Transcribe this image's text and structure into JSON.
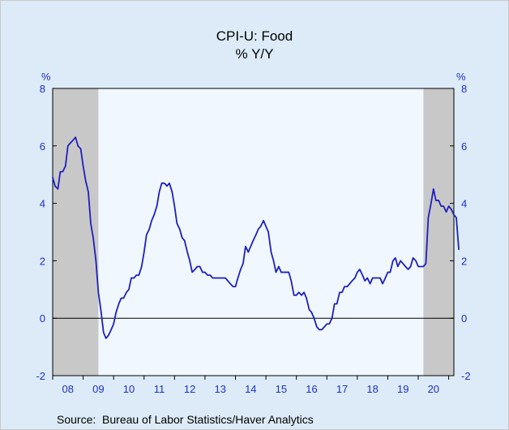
{
  "chart_data": {
    "type": "line",
    "title": "CPI-U: Food",
    "subtitle": "% Y/Y",
    "left_unit": "%",
    "right_unit": "%",
    "source": "Source:  Bureau of Labor Statistics/Haver Analytics",
    "ylim": [
      -2,
      8
    ],
    "y_ticks": [
      -2,
      0,
      2,
      4,
      6,
      8
    ],
    "x_range": [
      2008.0,
      2021.17
    ],
    "x_tick_labels": [
      "08",
      "09",
      "10",
      "11",
      "12",
      "13",
      "14",
      "15",
      "16",
      "17",
      "18",
      "19",
      "20"
    ],
    "zero_line": true,
    "recession_shading": [
      {
        "start": 2008.0,
        "end": 2009.5
      },
      {
        "start": 2020.17,
        "end": 2021.17
      }
    ],
    "colors": {
      "line": "#1f1fbf",
      "axis_text": "#1f2dcc",
      "plot_background": "#f0f7ff",
      "shading": "#c8c8c8",
      "outer_background": "#dcebf7"
    },
    "series": [
      {
        "values": [
          [
            2008.0,
            4.9
          ],
          [
            2008.08,
            4.6
          ],
          [
            2008.17,
            4.5
          ],
          [
            2008.25,
            5.1
          ],
          [
            2008.33,
            5.1
          ],
          [
            2008.42,
            5.3
          ],
          [
            2008.5,
            6.0
          ],
          [
            2008.58,
            6.1
          ],
          [
            2008.67,
            6.2
          ],
          [
            2008.75,
            6.3
          ],
          [
            2008.83,
            6.0
          ],
          [
            2008.92,
            5.9
          ],
          [
            2009.0,
            5.3
          ],
          [
            2009.08,
            4.8
          ],
          [
            2009.17,
            4.4
          ],
          [
            2009.25,
            3.3
          ],
          [
            2009.33,
            2.8
          ],
          [
            2009.42,
            2.0
          ],
          [
            2009.5,
            0.9
          ],
          [
            2009.58,
            0.3
          ],
          [
            2009.67,
            -0.5
          ],
          [
            2009.75,
            -0.7
          ],
          [
            2009.83,
            -0.6
          ],
          [
            2009.92,
            -0.4
          ],
          [
            2010.0,
            -0.2
          ],
          [
            2010.08,
            0.2
          ],
          [
            2010.17,
            0.5
          ],
          [
            2010.25,
            0.7
          ],
          [
            2010.33,
            0.7
          ],
          [
            2010.42,
            0.9
          ],
          [
            2010.5,
            1.0
          ],
          [
            2010.58,
            1.4
          ],
          [
            2010.67,
            1.4
          ],
          [
            2010.75,
            1.5
          ],
          [
            2010.83,
            1.5
          ],
          [
            2010.92,
            1.8
          ],
          [
            2011.0,
            2.3
          ],
          [
            2011.08,
            2.9
          ],
          [
            2011.17,
            3.1
          ],
          [
            2011.25,
            3.4
          ],
          [
            2011.33,
            3.6
          ],
          [
            2011.42,
            3.9
          ],
          [
            2011.5,
            4.4
          ],
          [
            2011.58,
            4.7
          ],
          [
            2011.67,
            4.7
          ],
          [
            2011.75,
            4.6
          ],
          [
            2011.83,
            4.7
          ],
          [
            2011.92,
            4.4
          ],
          [
            2012.0,
            3.9
          ],
          [
            2012.08,
            3.3
          ],
          [
            2012.17,
            3.1
          ],
          [
            2012.25,
            2.8
          ],
          [
            2012.33,
            2.7
          ],
          [
            2012.42,
            2.3
          ],
          [
            2012.5,
            2.0
          ],
          [
            2012.58,
            1.6
          ],
          [
            2012.67,
            1.7
          ],
          [
            2012.75,
            1.8
          ],
          [
            2012.83,
            1.8
          ],
          [
            2012.92,
            1.6
          ],
          [
            2013.0,
            1.6
          ],
          [
            2013.08,
            1.5
          ],
          [
            2013.17,
            1.5
          ],
          [
            2013.25,
            1.4
          ],
          [
            2013.33,
            1.4
          ],
          [
            2013.42,
            1.4
          ],
          [
            2013.5,
            1.4
          ],
          [
            2013.58,
            1.4
          ],
          [
            2013.67,
            1.4
          ],
          [
            2013.75,
            1.3
          ],
          [
            2013.83,
            1.2
          ],
          [
            2013.92,
            1.1
          ],
          [
            2014.0,
            1.1
          ],
          [
            2014.08,
            1.4
          ],
          [
            2014.17,
            1.7
          ],
          [
            2014.25,
            1.9
          ],
          [
            2014.33,
            2.5
          ],
          [
            2014.42,
            2.3
          ],
          [
            2014.5,
            2.5
          ],
          [
            2014.58,
            2.7
          ],
          [
            2014.67,
            2.9
          ],
          [
            2014.75,
            3.1
          ],
          [
            2014.83,
            3.2
          ],
          [
            2014.92,
            3.4
          ],
          [
            2015.0,
            3.2
          ],
          [
            2015.08,
            3.0
          ],
          [
            2015.17,
            2.3
          ],
          [
            2015.25,
            2.0
          ],
          [
            2015.33,
            1.6
          ],
          [
            2015.42,
            1.8
          ],
          [
            2015.5,
            1.6
          ],
          [
            2015.58,
            1.6
          ],
          [
            2015.67,
            1.6
          ],
          [
            2015.75,
            1.6
          ],
          [
            2015.83,
            1.3
          ],
          [
            2015.92,
            0.8
          ],
          [
            2016.0,
            0.8
          ],
          [
            2016.08,
            0.9
          ],
          [
            2016.17,
            0.8
          ],
          [
            2016.25,
            0.9
          ],
          [
            2016.33,
            0.7
          ],
          [
            2016.42,
            0.3
          ],
          [
            2016.5,
            0.2
          ],
          [
            2016.58,
            0.0
          ],
          [
            2016.67,
            -0.3
          ],
          [
            2016.75,
            -0.4
          ],
          [
            2016.83,
            -0.4
          ],
          [
            2016.92,
            -0.3
          ],
          [
            2017.0,
            -0.2
          ],
          [
            2017.08,
            -0.2
          ],
          [
            2017.17,
            0.0
          ],
          [
            2017.25,
            0.5
          ],
          [
            2017.33,
            0.5
          ],
          [
            2017.42,
            0.9
          ],
          [
            2017.5,
            0.9
          ],
          [
            2017.58,
            1.1
          ],
          [
            2017.67,
            1.1
          ],
          [
            2017.75,
            1.2
          ],
          [
            2017.83,
            1.3
          ],
          [
            2017.92,
            1.4
          ],
          [
            2018.0,
            1.6
          ],
          [
            2018.08,
            1.7
          ],
          [
            2018.17,
            1.5
          ],
          [
            2018.25,
            1.3
          ],
          [
            2018.33,
            1.4
          ],
          [
            2018.42,
            1.2
          ],
          [
            2018.5,
            1.4
          ],
          [
            2018.58,
            1.4
          ],
          [
            2018.67,
            1.4
          ],
          [
            2018.75,
            1.4
          ],
          [
            2018.83,
            1.2
          ],
          [
            2018.92,
            1.4
          ],
          [
            2019.0,
            1.6
          ],
          [
            2019.08,
            1.6
          ],
          [
            2019.17,
            2.0
          ],
          [
            2019.25,
            2.1
          ],
          [
            2019.33,
            1.8
          ],
          [
            2019.42,
            2.0
          ],
          [
            2019.5,
            1.9
          ],
          [
            2019.58,
            1.8
          ],
          [
            2019.67,
            1.7
          ],
          [
            2019.75,
            1.8
          ],
          [
            2019.83,
            2.1
          ],
          [
            2019.92,
            2.0
          ],
          [
            2020.0,
            1.8
          ],
          [
            2020.08,
            1.8
          ],
          [
            2020.17,
            1.8
          ],
          [
            2020.25,
            1.9
          ],
          [
            2020.33,
            3.5
          ],
          [
            2020.42,
            4.0
          ],
          [
            2020.5,
            4.5
          ],
          [
            2020.58,
            4.1
          ],
          [
            2020.67,
            4.1
          ],
          [
            2020.75,
            3.9
          ],
          [
            2020.83,
            3.9
          ],
          [
            2020.92,
            3.7
          ],
          [
            2021.0,
            3.9
          ],
          [
            2021.08,
            3.8
          ],
          [
            2021.17,
            3.6
          ],
          [
            2021.25,
            3.5
          ],
          [
            2021.33,
            2.4
          ]
        ]
      }
    ]
  }
}
